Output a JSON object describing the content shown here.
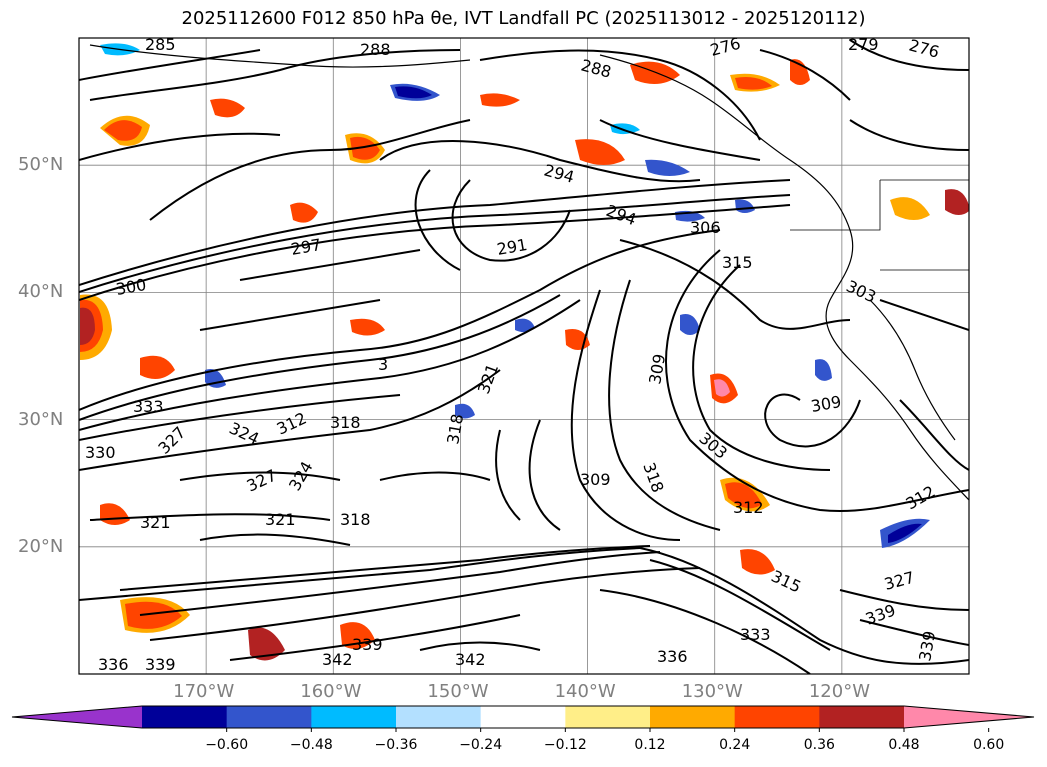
{
  "title": "2025112600 F012 850 hPa θe, IVT Landfall PC (2025113012 - 2025120112)",
  "map": {
    "lon_range": [
      180,
      110
    ],
    "lat_range": [
      10,
      60
    ],
    "lat_ticks": [
      {
        "value": 20,
        "label": "20°N"
      },
      {
        "value": 30,
        "label": "30°N"
      },
      {
        "value": 40,
        "label": "40°N"
      },
      {
        "value": 50,
        "label": "50°N"
      }
    ],
    "lon_ticks": [
      {
        "value": 170,
        "label": "170°W"
      },
      {
        "value": 160,
        "label": "160°W"
      },
      {
        "value": 150,
        "label": "150°W"
      },
      {
        "value": 140,
        "label": "140°W"
      },
      {
        "value": 130,
        "label": "130°W"
      },
      {
        "value": 120,
        "label": "120°W"
      }
    ],
    "contour_labels": [
      "285",
      "288",
      "276",
      "279",
      "276",
      "288",
      "294",
      "294",
      "291",
      "297",
      "300",
      "306",
      "315",
      "303",
      "309",
      "309",
      "321",
      "318",
      "324",
      "312",
      "318",
      "333",
      "327",
      "330",
      "321",
      "327",
      "324",
      "321",
      "318",
      "309",
      "318",
      "303",
      "312",
      "315",
      "312",
      "336",
      "339",
      "342",
      "339",
      "342",
      "336",
      "333",
      "339",
      "327",
      "339",
      "3"
    ],
    "feature_colors": {
      "coast": "#000000",
      "contour": "#000000",
      "grid": "#808080"
    }
  },
  "colorbar": {
    "colors": [
      "#9933cc",
      "#000099",
      "#3355cc",
      "#00bbff",
      "#b3e0ff",
      "#ffffff",
      "#ffee88",
      "#ffaa00",
      "#ff4400",
      "#b22222",
      "#ff88aa"
    ],
    "ticks": [
      "−0.60",
      "−0.48",
      "−0.36",
      "−0.24",
      "−0.12",
      "0.12",
      "0.24",
      "0.36",
      "0.48",
      "0.60"
    ]
  }
}
